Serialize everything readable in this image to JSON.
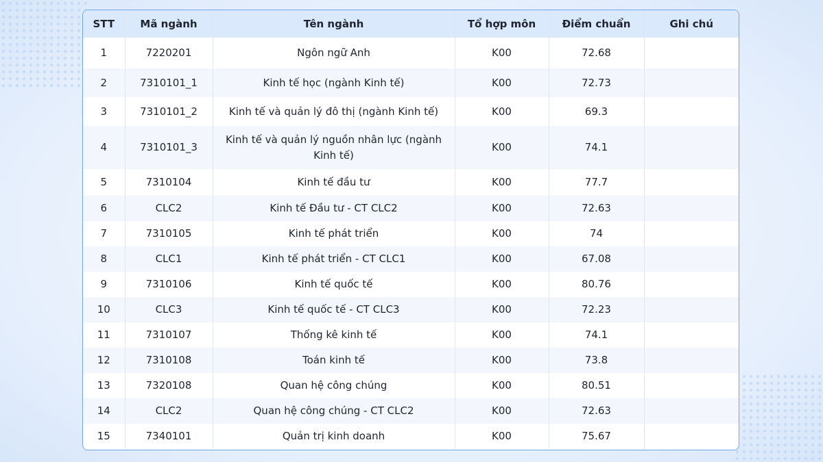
{
  "table": {
    "headers": [
      "STT",
      "Mã ngành",
      "Tên ngành",
      "Tổ hợp môn",
      "Điểm chuẩn",
      "Ghi chú"
    ],
    "rows": [
      [
        "1",
        "7220201",
        "Ngôn ngữ Anh",
        "K00",
        "72.68"
      ],
      [
        "2",
        "7310101_1",
        "Kinh tế học (ngành Kinh tế)",
        "K00",
        "72.73"
      ],
      [
        "3",
        "7310101_2",
        "Kinh tế và quản lý đô thị (ngành Kinh tế)",
        "K00",
        "69.3"
      ],
      [
        "4",
        "7310101_3",
        "Kinh tế và quản lý nguồn nhân lực (ngành Kinh tế)",
        "K00",
        "74.1"
      ],
      [
        "5",
        "7310104",
        "Kinh tế đầu tư",
        "K00",
        "77.7"
      ],
      [
        "6",
        "CLC2",
        "Kinh tế Đầu tư - CT CLC2",
        "K00",
        "72.63"
      ],
      [
        "7",
        "7310105",
        "Kinh tế phát triển",
        "K00",
        "74"
      ],
      [
        "8",
        "CLC1",
        "Kinh tế phát triển - CT CLC1",
        "K00",
        "67.08"
      ],
      [
        "9",
        "7310106",
        "Kinh tế quốc tế",
        "K00",
        "80.76"
      ],
      [
        "10",
        "CLC3",
        "Kinh tế quốc tế - CT CLC3",
        "K00",
        "72.23"
      ],
      [
        "11",
        "7310107",
        "Thống kê kinh tế",
        "K00",
        "74.1"
      ],
      [
        "12",
        "7310108",
        "Toán kinh tế",
        "K00",
        "73.8"
      ],
      [
        "13",
        "7320108",
        "Quan hệ công chúng",
        "K00",
        "80.51"
      ],
      [
        "14",
        "CLC2",
        "Quan hệ công chúng - CT CLC2",
        "K00",
        "72.63"
      ],
      [
        "15",
        "7340101",
        "Quản trị kinh doanh",
        "K00",
        "75.67"
      ]
    ]
  }
}
